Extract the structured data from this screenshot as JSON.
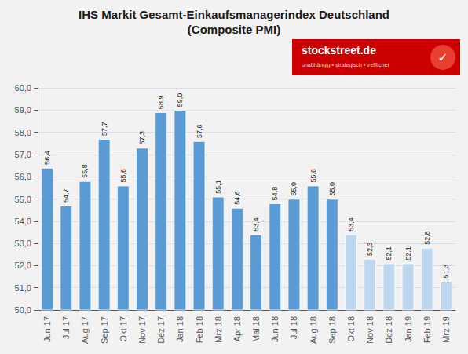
{
  "chart_data": {
    "type": "bar",
    "title": "IHS Markit Gesamt-Einkaufsmanagerindex Deutschland",
    "subtitle": "(Composite PMI)",
    "annotations": [
      "stockstreet.de",
      "unabhängig • strategisch • trefflicher",
      "✓"
    ],
    "categories": [
      "Jun 17",
      "Jul 17",
      "Aug 17",
      "Sep 17",
      "Okt 17",
      "Nov 17",
      "Dez 17",
      "Jan 18",
      "Feb 18",
      "Mrz 18",
      "Apr 18",
      "Mai 18",
      "Jun 18",
      "Jul 18",
      "Aug 18",
      "Sep 18",
      "Okt 18",
      "Nov 18",
      "Dez 18",
      "Jan 19",
      "Feb 19",
      "Mrz 19"
    ],
    "values": [
      56.4,
      54.7,
      55.8,
      57.7,
      55.6,
      57.3,
      58.9,
      59.0,
      57.6,
      55.1,
      54.6,
      53.4,
      54.8,
      55.0,
      55.6,
      55.0,
      53.4,
      52.3,
      52.1,
      52.1,
      52.8,
      51.3
    ],
    "value_labels": [
      "56,4",
      "54,7",
      "55,8",
      "57,7",
      "55,6",
      "57,3",
      "58,9",
      "59,0",
      "57,6",
      "55,1",
      "54,6",
      "53,4",
      "54,8",
      "55,0",
      "55,6",
      "55,0",
      "53,4",
      "52,3",
      "52,1",
      "52,1",
      "52,8",
      "51,3"
    ],
    "data_labels": true,
    "colors": [
      "#5B9BD5",
      "#5B9BD5",
      "#5B9BD5",
      "#5B9BD5",
      "#5B9BD5",
      "#5B9BD5",
      "#5B9BD5",
      "#5B9BD5",
      "#5B9BD5",
      "#5B9BD5",
      "#5B9BD5",
      "#5B9BD5",
      "#5B9BD5",
      "#5B9BD5",
      "#5B9BD5",
      "#5B9BD5",
      "#BDD7EE",
      "#BDD7EE",
      "#BDD7EE",
      "#BDD7EE",
      "#BDD7EE",
      "#BDD7EE"
    ],
    "ylim": [
      50.0,
      60.0
    ],
    "yticks": [
      {
        "value": 50.0,
        "label": "50,0"
      },
      {
        "value": 51.0,
        "label": "51,0"
      },
      {
        "value": 52.0,
        "label": "52,0"
      },
      {
        "value": 53.0,
        "label": "53,0"
      },
      {
        "value": 54.0,
        "label": "54,0"
      },
      {
        "value": 55.0,
        "label": "55,0"
      },
      {
        "value": 56.0,
        "label": "56,0"
      },
      {
        "value": 57.0,
        "label": "57,0"
      },
      {
        "value": 58.0,
        "label": "58,0"
      },
      {
        "value": 59.0,
        "label": "59,0"
      },
      {
        "value": 60.0,
        "label": "60,0"
      }
    ],
    "grid": true
  }
}
